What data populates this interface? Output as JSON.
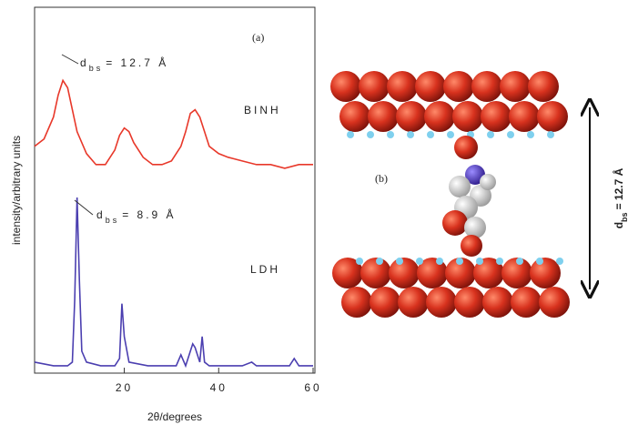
{
  "chart_data": {
    "type": "line",
    "xlabel": "2θ/degrees",
    "ylabel": "intensity/arbitrary units",
    "xlim": [
      1,
      60
    ],
    "ylim": [
      0,
      100
    ],
    "xticks": [
      20,
      40,
      60
    ],
    "series": [
      {
        "name": "BINH",
        "color": "#e8382a",
        "x": [
          1,
          3,
          5,
          6,
          7,
          8,
          9,
          10,
          12,
          14,
          16,
          18,
          19,
          20,
          21,
          22,
          24,
          26,
          28,
          30,
          32,
          33,
          34,
          35,
          36,
          37,
          38,
          40,
          42,
          45,
          48,
          51,
          54,
          57,
          60
        ],
        "values": [
          62,
          64,
          70,
          76,
          80,
          78,
          72,
          66,
          60,
          57,
          57,
          61,
          65,
          67,
          66,
          63,
          59,
          57,
          57,
          58,
          62,
          66,
          71,
          72,
          70,
          66,
          62,
          60,
          59,
          58,
          57,
          57,
          56,
          57,
          57
        ]
      },
      {
        "name": "LDH",
        "color": "#4b3fb0",
        "x": [
          1,
          5,
          8,
          9,
          9.5,
          10,
          10.5,
          11,
          12,
          15,
          18,
          19,
          19.5,
          20,
          21,
          25,
          30,
          31,
          32,
          33,
          34,
          34.5,
          35,
          36,
          36.5,
          37,
          38,
          40,
          45,
          47,
          48,
          52,
          55,
          56,
          57,
          60
        ],
        "values": [
          3,
          2,
          2,
          3,
          20,
          48,
          25,
          6,
          3,
          2,
          2,
          4,
          19,
          10,
          3,
          2,
          2,
          2,
          5,
          2,
          6,
          8,
          7,
          3,
          10,
          3,
          2,
          2,
          2,
          3,
          2,
          2,
          2,
          4,
          2,
          2
        ]
      }
    ],
    "annotations": [
      {
        "text": "(a)"
      },
      {
        "symbol": "d",
        "subscript": "bs",
        "text": "= 12.7 Å"
      },
      {
        "symbol": "d",
        "subscript": "bs",
        "text": "= 8.9 Å"
      },
      {
        "text": "(b)"
      },
      {
        "symbol": "d",
        "subscript": "bs",
        "text": "= 12.7 Å"
      }
    ]
  }
}
